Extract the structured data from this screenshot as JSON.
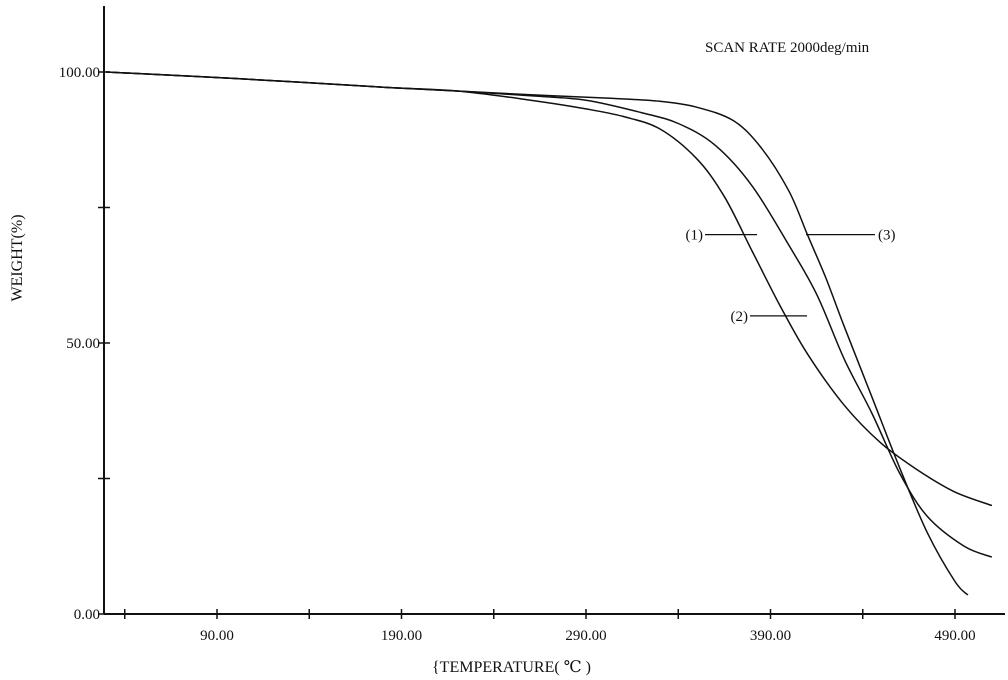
{
  "chart_data": {
    "type": "line",
    "title": "",
    "annotation": "SCAN RATE 2000deg/min",
    "xlabel": "{TEMPERATURE( ℃ )",
    "ylabel": "WEIGHT(%)",
    "xlim": [
      30,
      510
    ],
    "ylim": [
      0,
      118
    ],
    "x_ticks": [
      {
        "value": 90,
        "label": "90.00"
      },
      {
        "value": 190,
        "label": "190.00"
      },
      {
        "value": 290,
        "label": "290.00"
      },
      {
        "value": 390,
        "label": "390.00"
      },
      {
        "value": 490,
        "label": "490.00"
      }
    ],
    "x_minor_ticks": [
      40,
      140,
      240,
      340,
      440
    ],
    "y_ticks": [
      {
        "value": 0,
        "label": "0.00"
      },
      {
        "value": 50,
        "label": "50.00"
      },
      {
        "value": 100,
        "label": "100.00"
      }
    ],
    "y_minor_ticks": [
      25,
      75
    ],
    "grid": false,
    "series": [
      {
        "name": "(1)",
        "label_pos": [
          365,
          70
        ],
        "points": [
          [
            30,
            100
          ],
          [
            100,
            98.8
          ],
          [
            180,
            97.2
          ],
          [
            220,
            96.5
          ],
          [
            260,
            94.8
          ],
          [
            290,
            93.2
          ],
          [
            310,
            91.8
          ],
          [
            330,
            89.5
          ],
          [
            350,
            84
          ],
          [
            365,
            77
          ],
          [
            380,
            67
          ],
          [
            395,
            57
          ],
          [
            410,
            48
          ],
          [
            430,
            38.5
          ],
          [
            450,
            31.5
          ],
          [
            470,
            26.5
          ],
          [
            490,
            22.5
          ],
          [
            510,
            20
          ]
        ]
      },
      {
        "name": "(2)",
        "label_pos": [
          385,
          55
        ],
        "points": [
          [
            30,
            100
          ],
          [
            100,
            98.8
          ],
          [
            180,
            97.2
          ],
          [
            220,
            96.5
          ],
          [
            260,
            95.6
          ],
          [
            290,
            94.8
          ],
          [
            320,
            92.5
          ],
          [
            340,
            90.5
          ],
          [
            360,
            86.5
          ],
          [
            380,
            79
          ],
          [
            400,
            68
          ],
          [
            415,
            59
          ],
          [
            430,
            47
          ],
          [
            445,
            37
          ],
          [
            460,
            26
          ],
          [
            475,
            18
          ],
          [
            495,
            12.5
          ],
          [
            510,
            10.5
          ]
        ]
      },
      {
        "name": "(3)",
        "label_pos": [
          405,
          70
        ],
        "points": [
          [
            30,
            100
          ],
          [
            100,
            98.8
          ],
          [
            180,
            97.2
          ],
          [
            220,
            96.5
          ],
          [
            260,
            95.8
          ],
          [
            300,
            95.2
          ],
          [
            330,
            94.6
          ],
          [
            350,
            93.5
          ],
          [
            370,
            91
          ],
          [
            385,
            86
          ],
          [
            400,
            78
          ],
          [
            410,
            70
          ],
          [
            420,
            62
          ],
          [
            430,
            53
          ],
          [
            445,
            40
          ],
          [
            460,
            27
          ],
          [
            475,
            15
          ],
          [
            490,
            6
          ],
          [
            497,
            3.5
          ]
        ]
      }
    ]
  }
}
